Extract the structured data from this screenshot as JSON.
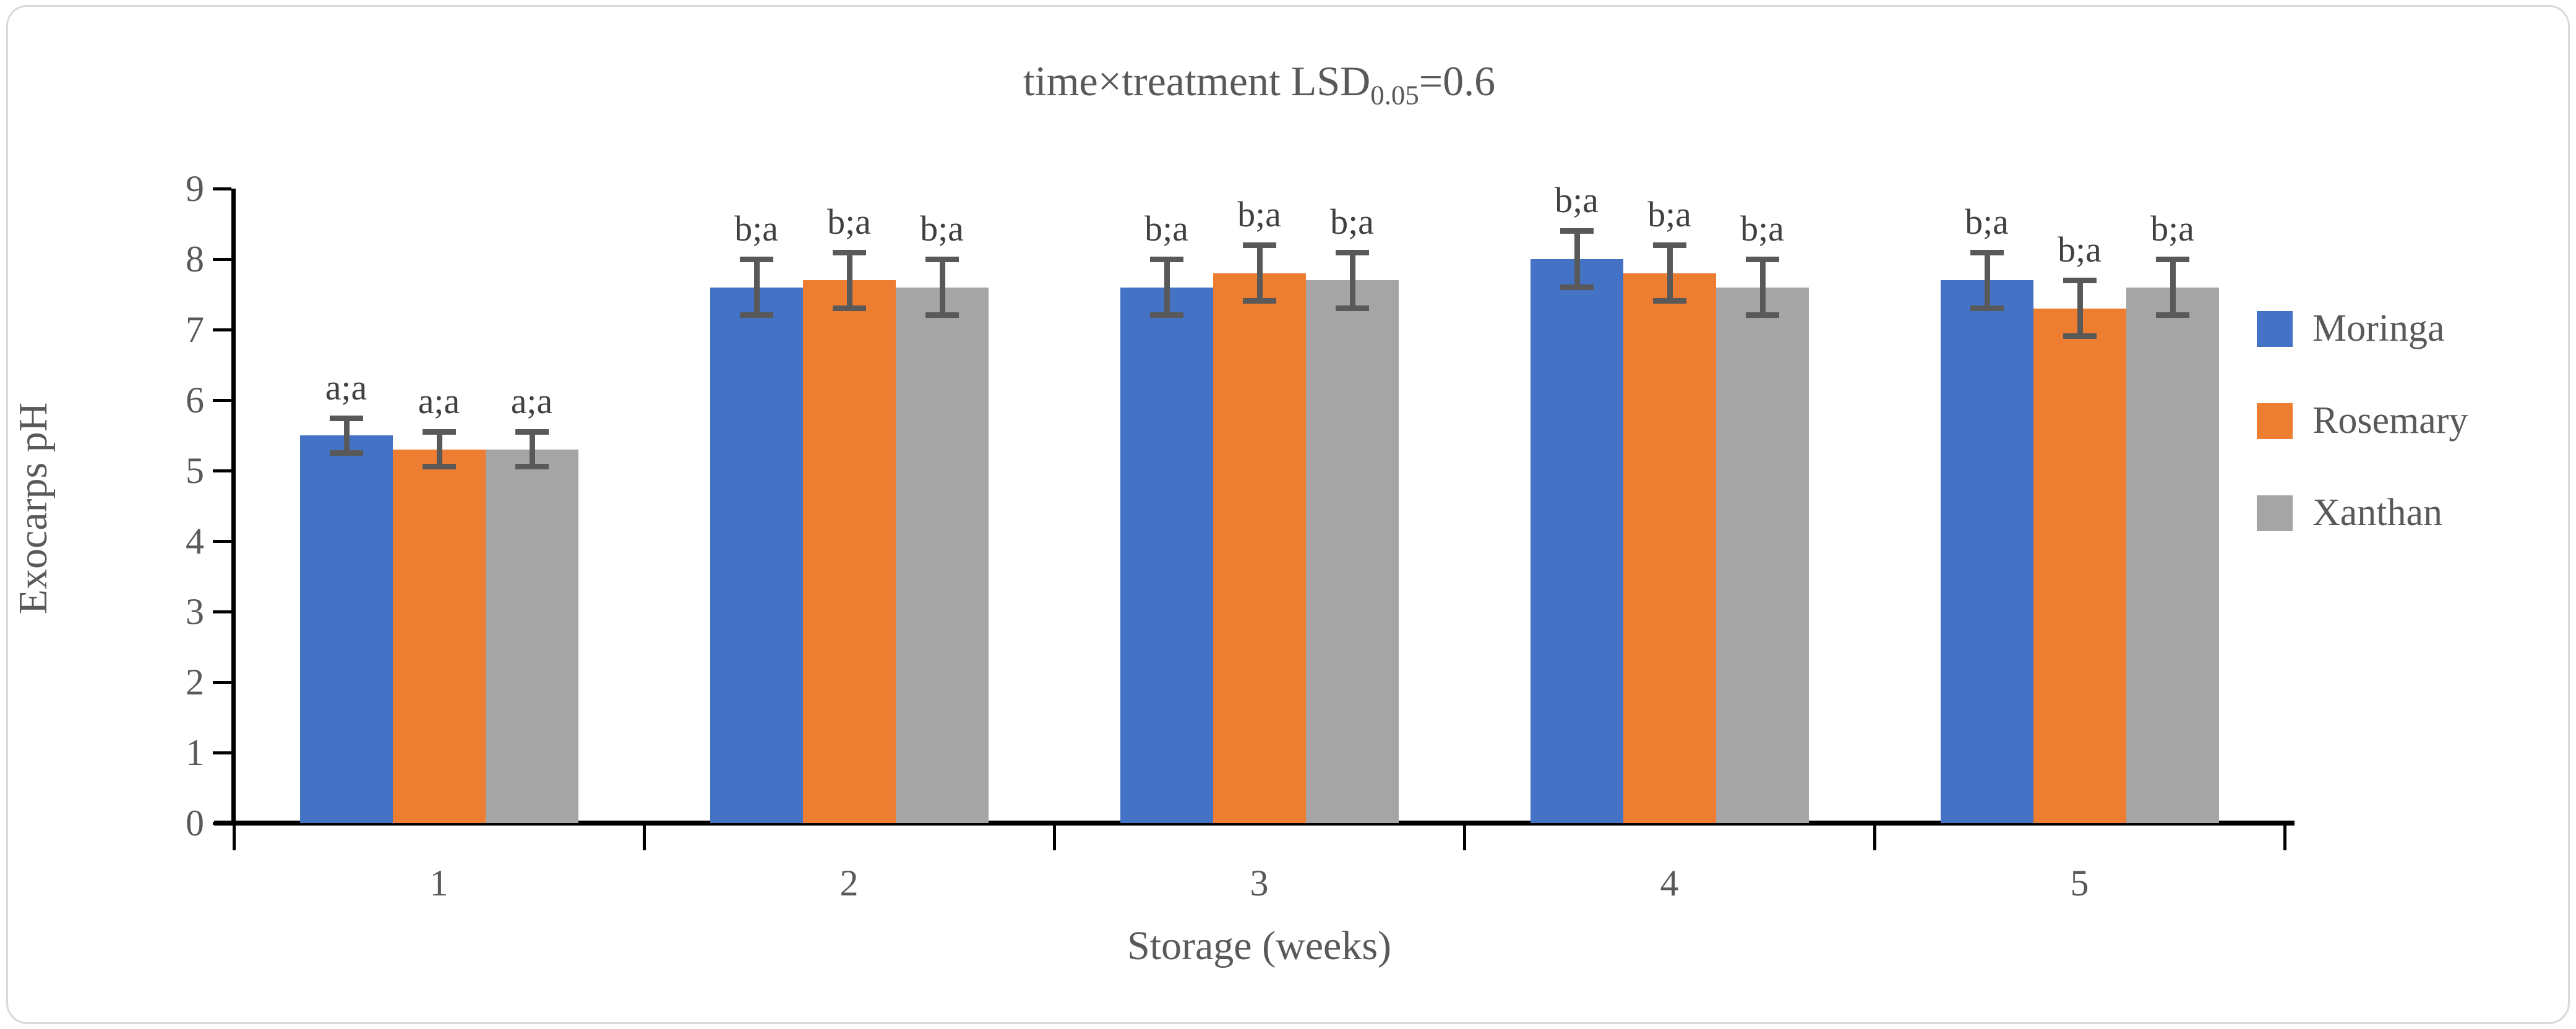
{
  "title": {
    "prefix": "time×treatment LSD",
    "subscript": "0.05",
    "suffix": "=0.6"
  },
  "frame": {
    "border_color": "#d9d9d9"
  },
  "chart_data": {
    "type": "bar",
    "title": "time×treatment LSD0.05=0.6",
    "categories": [
      "1",
      "2",
      "3",
      "4",
      "5"
    ],
    "series": [
      {
        "name": "Moringa",
        "color": "#4472C4",
        "values": [
          5.5,
          7.6,
          7.6,
          8.0,
          7.7
        ],
        "errors": [
          0.25,
          0.4,
          0.4,
          0.4,
          0.4
        ],
        "point_labels": [
          "a;a",
          "b;a",
          "b;a",
          "b;a",
          "b;a"
        ]
      },
      {
        "name": "Rosemary",
        "color": "#ED7D31",
        "values": [
          5.3,
          7.7,
          7.8,
          7.8,
          7.3
        ],
        "errors": [
          0.25,
          0.4,
          0.4,
          0.4,
          0.4
        ],
        "point_labels": [
          "a;a",
          "b;a",
          "b;a",
          "b;a",
          "b;a"
        ]
      },
      {
        "name": "Xanthan",
        "color": "#A5A5A5",
        "values": [
          5.3,
          7.6,
          7.7,
          7.6,
          7.6
        ],
        "errors": [
          0.25,
          0.4,
          0.4,
          0.4,
          0.4
        ],
        "point_labels": [
          "a;a",
          "b;a",
          "b;a",
          "b;a",
          "b;a"
        ]
      }
    ],
    "xlabel": "Storage (weeks)",
    "ylabel": "Exocarps pH",
    "ylim": [
      0,
      9
    ],
    "ytick_step": 1,
    "yticks": [
      "0",
      "1",
      "2",
      "3",
      "4",
      "5",
      "6",
      "7",
      "8",
      "9"
    ],
    "grid": false,
    "legend_position": "right",
    "error_bar_color": "#595959",
    "bar_label_color": "#404040",
    "axis_text_color": "#595959",
    "axis_line_color": "#000000"
  }
}
